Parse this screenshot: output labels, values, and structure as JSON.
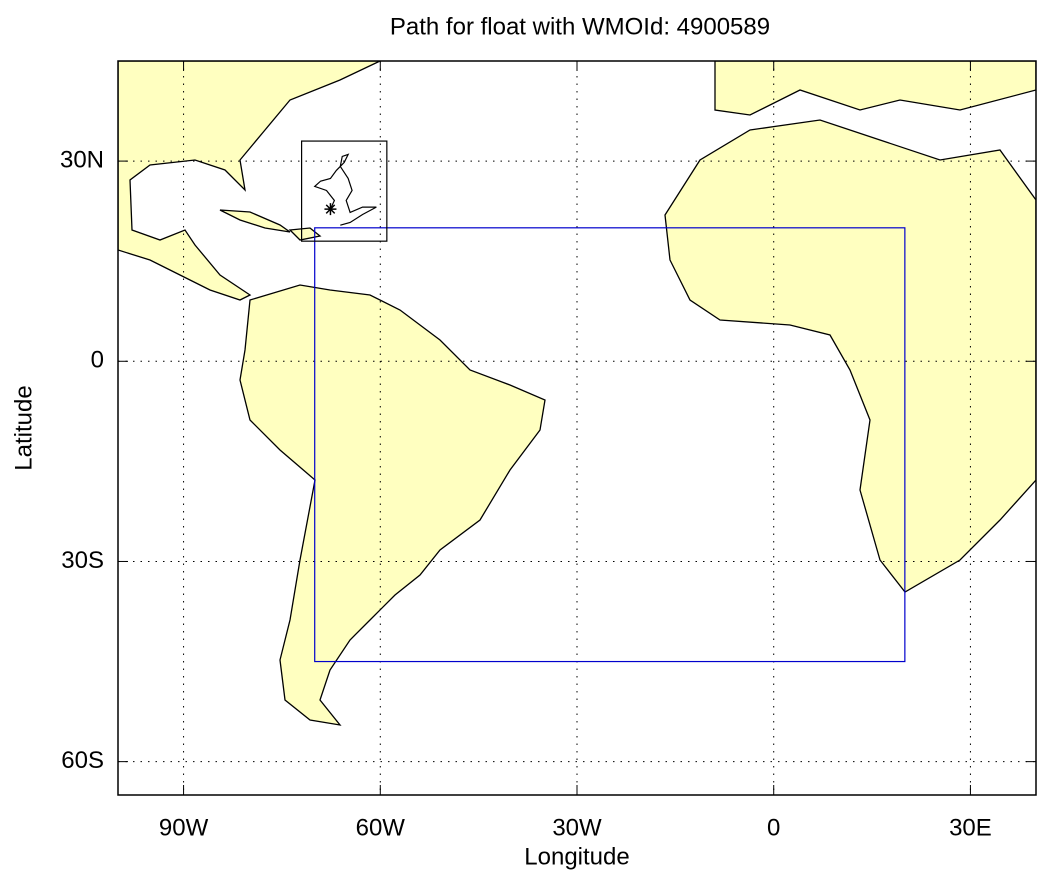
{
  "chart_data": {
    "type": "map",
    "title": "Path for float with WMOId: 4900589",
    "xlabel": "Longitude",
    "ylabel": "Latitude",
    "xlim": [
      -100,
      40
    ],
    "ylim": [
      -65,
      45
    ],
    "xticks": [
      {
        "value": -90,
        "label": "90W"
      },
      {
        "value": -60,
        "label": "60W"
      },
      {
        "value": -30,
        "label": "30W"
      },
      0,
      {
        "value": 30,
        "label": "30E"
      }
    ],
    "yticks": [
      {
        "value": 30,
        "label": "30N"
      },
      0,
      {
        "value": -30,
        "label": "30S"
      },
      {
        "value": -60,
        "label": "60S"
      }
    ],
    "grid": true,
    "land_color": "#ffffc0",
    "regions": [
      {
        "color": "#0000cc",
        "lon": [
          -70,
          20
        ],
        "lat": [
          -45,
          20
        ]
      },
      {
        "color": "#000000",
        "lon": [
          -72,
          -59
        ],
        "lat": [
          18,
          33
        ]
      }
    ],
    "track": {
      "color": "#000000",
      "lon": [
        -67.6,
        -67.0,
        -68.2,
        -70.0,
        -69.1,
        -67.6,
        -66.7,
        -65.5,
        -64.9,
        -65.8,
        -66.1,
        -64.9,
        -64.3,
        -65.2,
        -64.6,
        -62.7,
        -60.6,
        -62.7,
        -64.6,
        -66.1
      ],
      "lat": [
        22.8,
        24.1,
        25.6,
        26.2,
        27.0,
        27.4,
        28.6,
        29.8,
        31.0,
        30.7,
        29.2,
        27.4,
        25.6,
        24.1,
        22.3,
        23.1,
        23.1,
        22.0,
        20.8,
        20.4
      ]
    }
  }
}
